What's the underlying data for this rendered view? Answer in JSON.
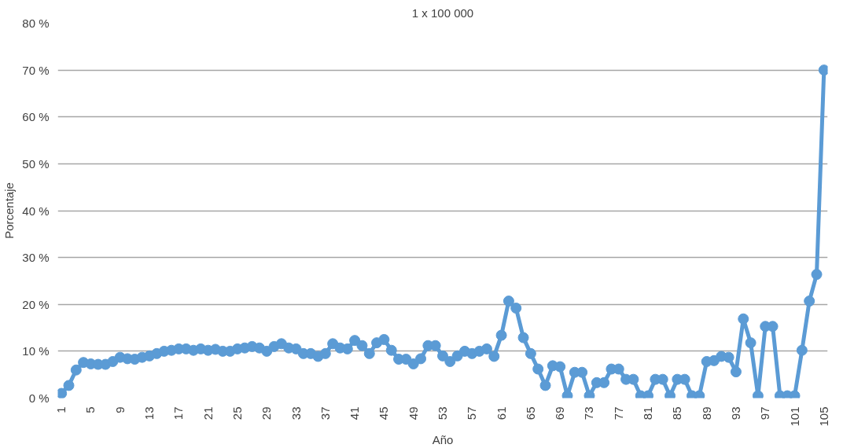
{
  "chart_data": {
    "type": "line",
    "title": "1 x 100 000",
    "xlabel": "Año",
    "ylabel": "Porcentaje",
    "categories": [
      "1",
      null,
      null,
      null,
      "5",
      null,
      null,
      null,
      "9",
      null,
      null,
      null,
      "13",
      null,
      null,
      null,
      "17",
      null,
      null,
      null,
      "21",
      null,
      null,
      null,
      "25",
      null,
      null,
      null,
      "29",
      null,
      null,
      null,
      "33",
      null,
      null,
      null,
      "37",
      null,
      null,
      null,
      "41",
      null,
      null,
      null,
      "45",
      null,
      null,
      null,
      "49",
      null,
      null,
      null,
      "53",
      null,
      null,
      null,
      "57",
      null,
      null,
      null,
      "61",
      null,
      null,
      null,
      "65",
      null,
      null,
      null,
      "69",
      null,
      null,
      null,
      "73",
      null,
      null,
      null,
      "77",
      null,
      null,
      null,
      "81",
      null,
      null,
      null,
      "85",
      null,
      null,
      null,
      "89",
      null,
      null,
      null,
      "93",
      null,
      null,
      null,
      "97",
      null,
      null,
      null,
      "101",
      null,
      null,
      null,
      "105"
    ],
    "series": [
      {
        "color": "#5b9bd5",
        "values": [
          1,
          2.7,
          6,
          7.6,
          7.3,
          7.2,
          7.2,
          7.8,
          8.7,
          8.4,
          8.3,
          8.7,
          9,
          9.5,
          10,
          10.2,
          10.5,
          10.5,
          10.2,
          10.5,
          10.2,
          10.4,
          10,
          10,
          10.5,
          10.7,
          11,
          10.7,
          10,
          11,
          11.6,
          10.7,
          10.5,
          9.5,
          9.5,
          8.9,
          9.5,
          11.6,
          10.7,
          10.5,
          12.3,
          11.2,
          9.5,
          11.8,
          12.5,
          10.2,
          8.3,
          8.3,
          7.3,
          8.4,
          11.2,
          11.2,
          9,
          7.8,
          9,
          10,
          9.5,
          10,
          10.5,
          8.9,
          13.4,
          20.7,
          19.2,
          12.9,
          9.5,
          6.2,
          2.7,
          6.9,
          6.7,
          0.5,
          5.5,
          5.5,
          0.5,
          3.3,
          3.3,
          6.2,
          6.2,
          4,
          4,
          0.5,
          0.5,
          4,
          4,
          0.5,
          4,
          4,
          0.5,
          0.5,
          7.8,
          8,
          8.9,
          8.7,
          5.6,
          16.9,
          11.8,
          0.5,
          15.3,
          15.3,
          0.5,
          0.5,
          0.5,
          10.2,
          20.7,
          26.4,
          70
        ]
      }
    ],
    "ylim": [
      0,
      80
    ],
    "yticks": [
      {
        "value": 0,
        "label": "0 %"
      },
      {
        "value": 10,
        "label": "10 %"
      },
      {
        "value": 20,
        "label": "20 %"
      },
      {
        "value": 30,
        "label": "30 %"
      },
      {
        "value": 40,
        "label": "40 %"
      },
      {
        "value": 50,
        "label": "50 %"
      },
      {
        "value": 60,
        "label": "60 %"
      },
      {
        "value": 70,
        "label": "70 %"
      },
      {
        "value": 80,
        "label": "80 %"
      }
    ],
    "grid": "y",
    "marker": "circle",
    "line_style": "solid"
  }
}
